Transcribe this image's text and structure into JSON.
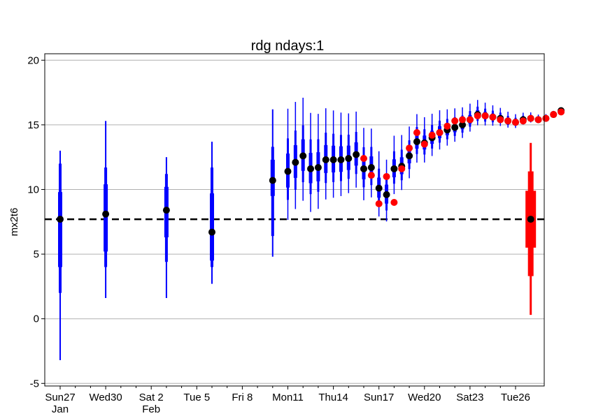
{
  "chart_data": {
    "type": "boxplot",
    "title": "rdg ndays:1",
    "ylabel": "mx2t6",
    "ylim": [
      -5.2,
      20.5
    ],
    "yticks": [
      -5,
      0,
      5,
      10,
      15,
      20
    ],
    "grid": true,
    "reference_line": 7.7,
    "x_range_days": [
      -0.05,
      30.3
    ],
    "x_ticks": [
      {
        "day": 0,
        "label": "Sun27",
        "sub": "Jan",
        "highlight": true
      },
      {
        "day": 3,
        "label": "Wed30",
        "sub": "",
        "highlight": false
      },
      {
        "day": 6,
        "label": "Sat 2",
        "sub": "Feb",
        "highlight": false
      },
      {
        "day": 9,
        "label": "Tue 5",
        "sub": "",
        "highlight": false
      },
      {
        "day": 12,
        "label": "Fri 8",
        "sub": "",
        "highlight": false
      },
      {
        "day": 15,
        "label": "Mon11",
        "sub": "",
        "highlight": false
      },
      {
        "day": 18,
        "label": "Thu14",
        "sub": "",
        "highlight": false
      },
      {
        "day": 21,
        "label": "Sun17",
        "sub": "",
        "highlight": true
      },
      {
        "day": 24,
        "label": "Wed20",
        "sub": "",
        "highlight": false
      },
      {
        "day": 27,
        "label": "Sat23",
        "sub": "",
        "highlight": false
      },
      {
        "day": 30,
        "label": "Tue26",
        "sub": "",
        "highlight": false
      }
    ],
    "colors": {
      "ensemble": "#0000ff",
      "climate": "#ff0000",
      "median_dot": "#000000",
      "highlight_dot": "#ff0000",
      "grid": "#b0b0b0",
      "highlight_label": "#ff0000"
    },
    "sparse_boxes": [
      {
        "day": 0.0,
        "wlo": -3.2,
        "q10": 2.0,
        "q25": 4.0,
        "q75": 9.8,
        "q90": 12.0,
        "whi": 13.0,
        "med": 7.7
      },
      {
        "day": 3.0,
        "wlo": 1.6,
        "q10": 4.0,
        "q25": 5.2,
        "q75": 10.4,
        "q90": 11.7,
        "whi": 15.3,
        "med": 8.1
      },
      {
        "day": 7.0,
        "wlo": 1.6,
        "q10": 4.4,
        "q25": 6.3,
        "q75": 10.2,
        "q90": 11.2,
        "whi": 12.5,
        "med": 8.4
      },
      {
        "day": 10.0,
        "wlo": 2.7,
        "q10": 4.0,
        "q25": 4.5,
        "q75": 9.7,
        "q90": 11.7,
        "whi": 13.7,
        "med": 6.7
      },
      {
        "day": 14.0,
        "wlo": 4.8,
        "q10": 6.4,
        "q25": 9.5,
        "q75": 12.3,
        "q90": 13.3,
        "whi": 16.2,
        "med": 10.7
      }
    ],
    "dense_series": {
      "start_day": 15,
      "step_days": 0.5,
      "median": [
        11.4,
        12.1,
        12.6,
        11.6,
        11.7,
        12.3,
        12.3,
        12.3,
        12.4,
        12.7,
        11.6,
        11.7,
        10.1,
        9.6,
        11.6,
        11.8,
        12.6,
        13.7,
        13.6,
        14.0,
        14.4,
        14.6,
        14.8,
        15.0,
        15.4,
        15.8,
        15.7,
        15.6,
        15.5,
        15.3,
        15.2,
        15.4,
        15.5,
        15.4,
        15.5,
        15.8,
        16.1
      ],
      "red_dots": [
        {
          "i": 10,
          "v": 12.4
        },
        {
          "i": 11,
          "v": 11.1
        },
        {
          "i": 12,
          "v": 8.9
        },
        {
          "i": 13,
          "v": 11.0
        },
        {
          "i": 14,
          "v": 9.0
        },
        {
          "i": 15,
          "v": 11.6
        },
        {
          "i": 16,
          "v": 13.2
        },
        {
          "i": 17,
          "v": 14.4
        },
        {
          "i": 18,
          "v": 13.5
        },
        {
          "i": 19,
          "v": 14.2
        },
        {
          "i": 20,
          "v": 14.4
        },
        {
          "i": 21,
          "v": 14.9
        },
        {
          "i": 22,
          "v": 15.3
        },
        {
          "i": 23,
          "v": 15.4
        },
        {
          "i": 24,
          "v": 15.4
        },
        {
          "i": 25,
          "v": 15.7
        },
        {
          "i": 26,
          "v": 15.7
        },
        {
          "i": 27,
          "v": 15.6
        },
        {
          "i": 28,
          "v": 15.4
        },
        {
          "i": 29,
          "v": 15.3
        },
        {
          "i": 30,
          "v": 15.2
        },
        {
          "i": 31,
          "v": 15.3
        },
        {
          "i": 32,
          "v": 15.5
        },
        {
          "i": 33,
          "v": 15.4
        },
        {
          "i": 34,
          "v": 15.5
        },
        {
          "i": 35,
          "v": 15.8
        },
        {
          "i": 36,
          "v": 16.0
        }
      ]
    },
    "climate_box": {
      "day": 31.0,
      "wlo": 0.3,
      "q10": 3.3,
      "q25": 5.5,
      "q75": 9.9,
      "q90": 11.4,
      "whi": 13.6,
      "med": 7.7
    }
  }
}
